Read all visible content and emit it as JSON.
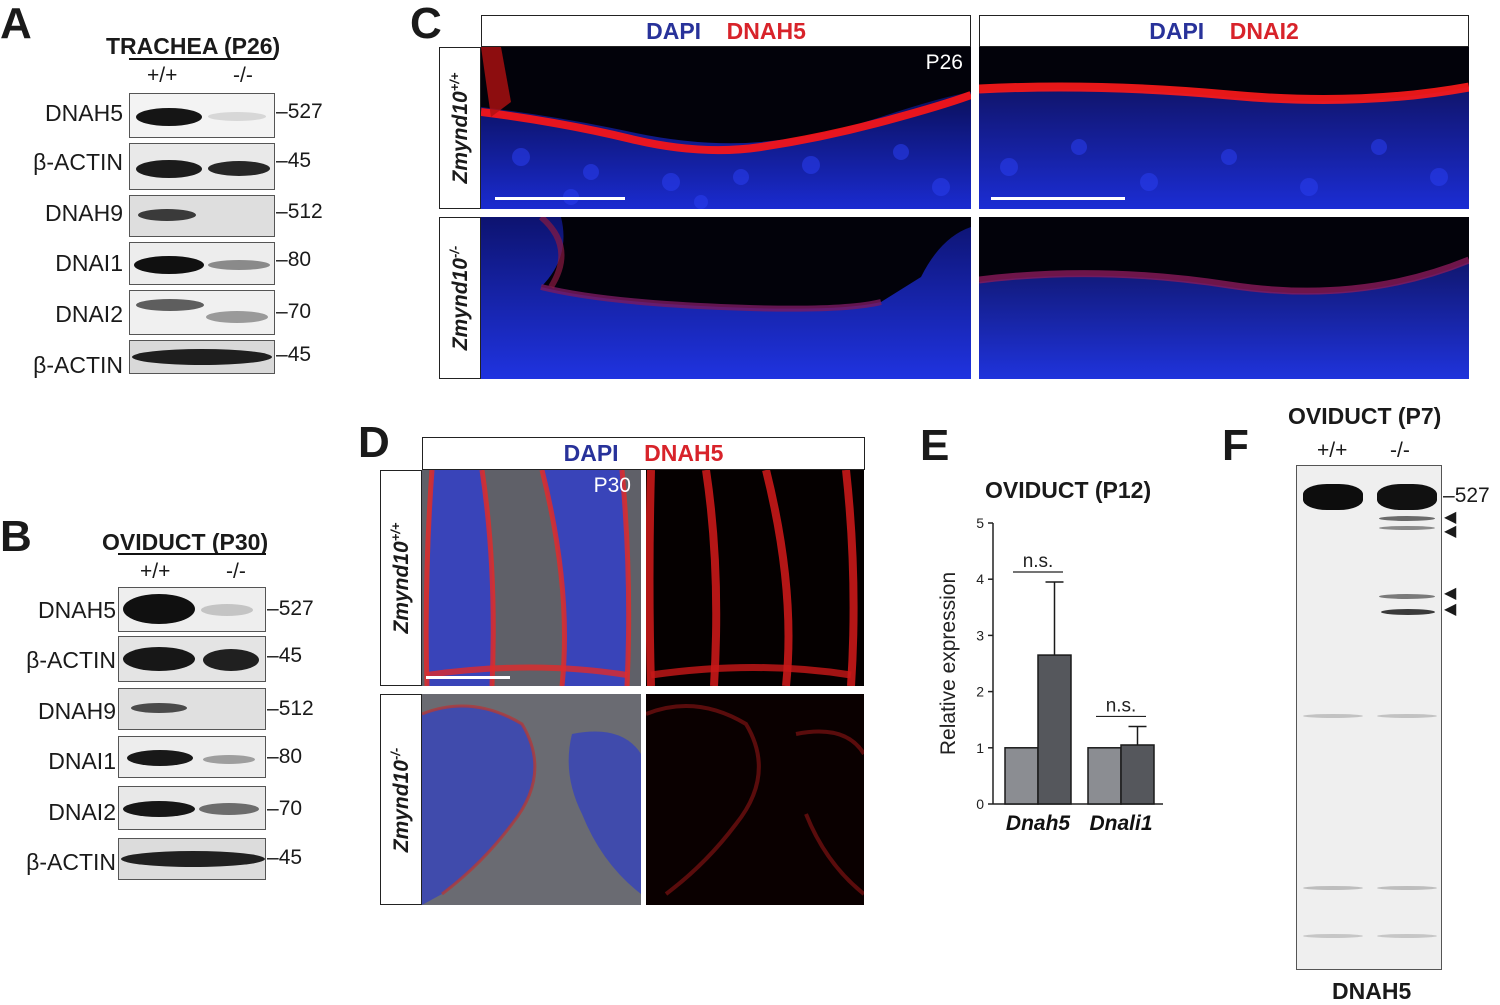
{
  "panels": {
    "A": {
      "label": "A",
      "title": "TRACHEA (P26)",
      "genotypes": [
        "+/+",
        "-/-"
      ],
      "rows": [
        {
          "name": "DNAH5",
          "mw": "527"
        },
        {
          "name": "β-ACTIN",
          "mw": "45"
        },
        {
          "name": "DNAH9",
          "mw": "512"
        },
        {
          "name": "DNAI1",
          "mw": "80"
        },
        {
          "name": "DNAI2",
          "mw": "70"
        },
        {
          "name": "β-ACTIN",
          "mw": "45"
        }
      ]
    },
    "B": {
      "label": "B",
      "title": "OVIDUCT (P30)",
      "genotypes": [
        "+/+",
        "-/-"
      ],
      "rows": [
        {
          "name": "DNAH5",
          "mw": "527"
        },
        {
          "name": "β-ACTIN",
          "mw": "45"
        },
        {
          "name": "DNAH9",
          "mw": "512"
        },
        {
          "name": "DNAI1",
          "mw": "80"
        },
        {
          "name": "DNAI2",
          "mw": "70"
        },
        {
          "name": "β-ACTIN",
          "mw": "45"
        }
      ]
    },
    "C": {
      "label": "C",
      "stain_left": {
        "dapi": "DAPI",
        "marker": "DNAH5"
      },
      "stain_right": {
        "dapi": "DAPI",
        "marker": "DNAI2"
      },
      "age": "P26",
      "row_wt": "Zmynd10",
      "row_wt_sup": "+/+",
      "row_ko": "Zmynd10",
      "row_ko_sup": "-/-"
    },
    "D": {
      "label": "D",
      "stain": {
        "dapi": "DAPI",
        "marker": "DNAH5"
      },
      "age": "P30",
      "row_wt": "Zmynd10",
      "row_wt_sup": "+/+",
      "row_ko": "Zmynd10",
      "row_ko_sup": "-/-"
    },
    "E": {
      "label": "E",
      "title": "OVIDUCT (P12)",
      "ylabel": "Relative expression",
      "significance": [
        "n.s.",
        "n.s."
      ]
    },
    "F": {
      "label": "F",
      "title": "OVIDUCT (P7)",
      "genotypes": [
        "+/+",
        "-/-"
      ],
      "mw": "527",
      "footer": "DNAH5"
    }
  },
  "chart_data": {
    "type": "bar",
    "title": "OVIDUCT (P12)",
    "xlabel": "",
    "ylabel": "Relative expression",
    "categories": [
      "Dnah5",
      "Dnali1"
    ],
    "ylim": [
      0,
      5
    ],
    "yticks": [
      0,
      1,
      2,
      3,
      4,
      5
    ],
    "series": [
      {
        "values": [
          1.0,
          1.0
        ],
        "color": "#8b8d92"
      },
      {
        "values": [
          2.65,
          1.05
        ],
        "error": [
          1.3,
          0.33
        ],
        "color": "#55575c"
      }
    ],
    "annotations": [
      "n.s.",
      "n.s."
    ]
  }
}
